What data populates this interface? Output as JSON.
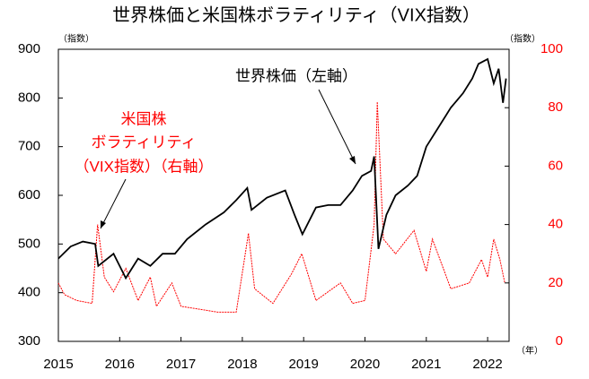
{
  "chart_data": {
    "type": "line",
    "title": "世界株価と米国株ボラティリティ（VIX指数）",
    "y_unit_label": "（指数）",
    "y2_unit_label": "（指数）",
    "x_unit_label": "（年）",
    "annotations": [
      "世界株価（左軸）",
      "米国株",
      "ボラティリティ",
      "（VIX指数）（右軸）"
    ],
    "xlim": [
      2015,
      2022.35
    ],
    "xticks": [
      2015,
      2016,
      2017,
      2018,
      2019,
      2020,
      2021,
      2022
    ],
    "ylim": [
      300,
      900
    ],
    "yticks": [
      300,
      400,
      500,
      600,
      700,
      800,
      900
    ],
    "y2lim": [
      0,
      100
    ],
    "y2ticks": [
      0,
      20,
      40,
      60,
      80,
      100
    ],
    "series": [
      {
        "name": "世界株価（左軸）",
        "color": "#000000",
        "axis": "y",
        "x": [
          2015.0,
          2015.2,
          2015.4,
          2015.6,
          2015.65,
          2015.9,
          2016.1,
          2016.3,
          2016.5,
          2016.7,
          2016.9,
          2017.1,
          2017.4,
          2017.7,
          2017.9,
          2018.08,
          2018.15,
          2018.4,
          2018.7,
          2018.85,
          2018.98,
          2019.2,
          2019.4,
          2019.6,
          2019.8,
          2019.95,
          2020.1,
          2020.15,
          2020.22,
          2020.35,
          2020.5,
          2020.7,
          2020.85,
          2021.0,
          2021.2,
          2021.4,
          2021.6,
          2021.75,
          2021.85,
          2022.0,
          2022.1,
          2022.18,
          2022.25,
          2022.3
        ],
        "values": [
          470,
          495,
          505,
          500,
          455,
          480,
          430,
          470,
          455,
          480,
          480,
          510,
          540,
          565,
          590,
          615,
          570,
          595,
          610,
          560,
          520,
          575,
          580,
          580,
          610,
          640,
          650,
          680,
          490,
          560,
          600,
          620,
          640,
          700,
          740,
          780,
          810,
          840,
          870,
          880,
          830,
          860,
          790,
          840
        ]
      },
      {
        "name": "米国株ボラティリティ（VIX指数）（右軸）",
        "color": "#ff0000",
        "axis": "y2",
        "x": [
          2015.0,
          2015.1,
          2015.3,
          2015.55,
          2015.64,
          2015.75,
          2015.9,
          2016.1,
          2016.3,
          2016.5,
          2016.6,
          2016.85,
          2017.0,
          2017.3,
          2017.6,
          2017.9,
          2018.1,
          2018.2,
          2018.5,
          2018.8,
          2018.97,
          2019.2,
          2019.6,
          2019.8,
          2020.0,
          2020.15,
          2020.2,
          2020.3,
          2020.5,
          2020.8,
          2021.0,
          2021.1,
          2021.4,
          2021.7,
          2021.9,
          2022.0,
          2022.1,
          2022.2,
          2022.28
        ],
        "values": [
          20,
          16,
          14,
          13,
          40,
          22,
          17,
          25,
          14,
          22,
          12,
          20,
          12,
          11,
          10,
          10,
          37,
          18,
          13,
          23,
          30,
          14,
          20,
          13,
          14,
          40,
          82,
          35,
          30,
          38,
          24,
          35,
          18,
          20,
          28,
          22,
          35,
          28,
          20
        ]
      }
    ]
  }
}
